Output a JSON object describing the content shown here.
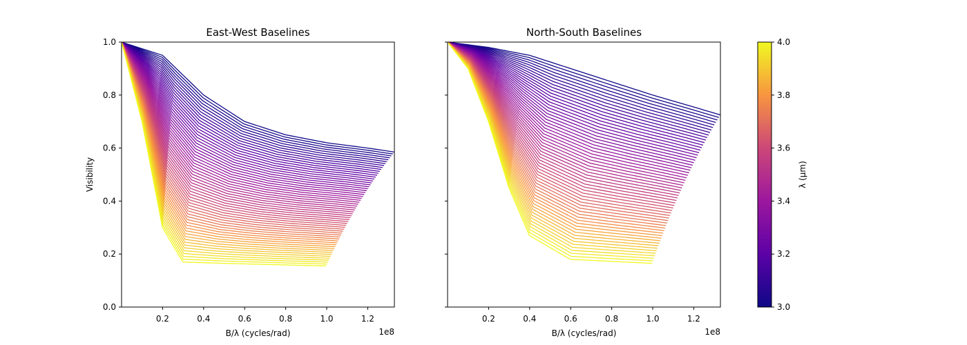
{
  "chart_data": [
    {
      "type": "line",
      "title": "East-West Baselines",
      "xlabel": "B/λ (cycles/rad)",
      "ylabel": "Visibility",
      "x_offset_label": "1e8",
      "xlim": [
        0,
        1.33
      ],
      "ylim": [
        0,
        1.0
      ],
      "x_ticks": [
        "0.2",
        "0.4",
        "0.6",
        "0.8",
        "1.0",
        "1.2"
      ],
      "y_ticks": [
        "0.0",
        "0.2",
        "0.4",
        "0.6",
        "0.8",
        "1.0"
      ],
      "grid": false,
      "wavelength_range": [
        3.0,
        4.0
      ],
      "series_count": 60,
      "series_envelope": {
        "shortest_wavelength": {
          "lambda": 3.0,
          "x": [
            0.0,
            0.2,
            0.4,
            0.6,
            0.8,
            1.0,
            1.2,
            1.33
          ],
          "y": [
            1.0,
            0.95,
            0.8,
            0.7,
            0.65,
            0.62,
            0.6,
            0.585
          ]
        },
        "longest_wavelength": {
          "lambda": 4.0,
          "x": [
            0.0,
            0.1,
            0.2,
            0.3,
            0.5,
            1.0
          ],
          "y": [
            1.0,
            0.7,
            0.3,
            0.17,
            0.165,
            0.155
          ]
        }
      }
    },
    {
      "type": "line",
      "title": "North-South Baselines",
      "xlabel": "B/λ (cycles/rad)",
      "ylabel": "",
      "x_offset_label": "1e8",
      "xlim": [
        0,
        1.33
      ],
      "ylim": [
        0,
        1.0
      ],
      "x_ticks": [
        "0.2",
        "0.4",
        "0.6",
        "0.8",
        "1.0",
        "1.2"
      ],
      "y_ticks": [
        "0.0",
        "0.2",
        "0.4",
        "0.6",
        "0.8",
        "1.0"
      ],
      "grid": false,
      "wavelength_range": [
        3.0,
        4.0
      ],
      "series_count": 60,
      "series_envelope": {
        "shortest_wavelength": {
          "lambda": 3.0,
          "x": [
            0.0,
            0.2,
            0.4,
            0.6,
            0.8,
            1.0,
            1.2,
            1.33
          ],
          "y": [
            1.0,
            0.98,
            0.95,
            0.9,
            0.85,
            0.8,
            0.755,
            0.725
          ]
        },
        "longest_wavelength": {
          "lambda": 4.0,
          "x": [
            0.0,
            0.1,
            0.2,
            0.3,
            0.4,
            0.6,
            1.0
          ],
          "y": [
            1.0,
            0.9,
            0.7,
            0.45,
            0.27,
            0.18,
            0.165
          ]
        }
      }
    }
  ],
  "colorbar": {
    "label": "λ (μm)",
    "range": [
      3.0,
      4.0
    ],
    "ticks": [
      "3.0",
      "3.2",
      "3.4",
      "3.6",
      "3.8",
      "4.0"
    ],
    "colormap": "plasma"
  }
}
